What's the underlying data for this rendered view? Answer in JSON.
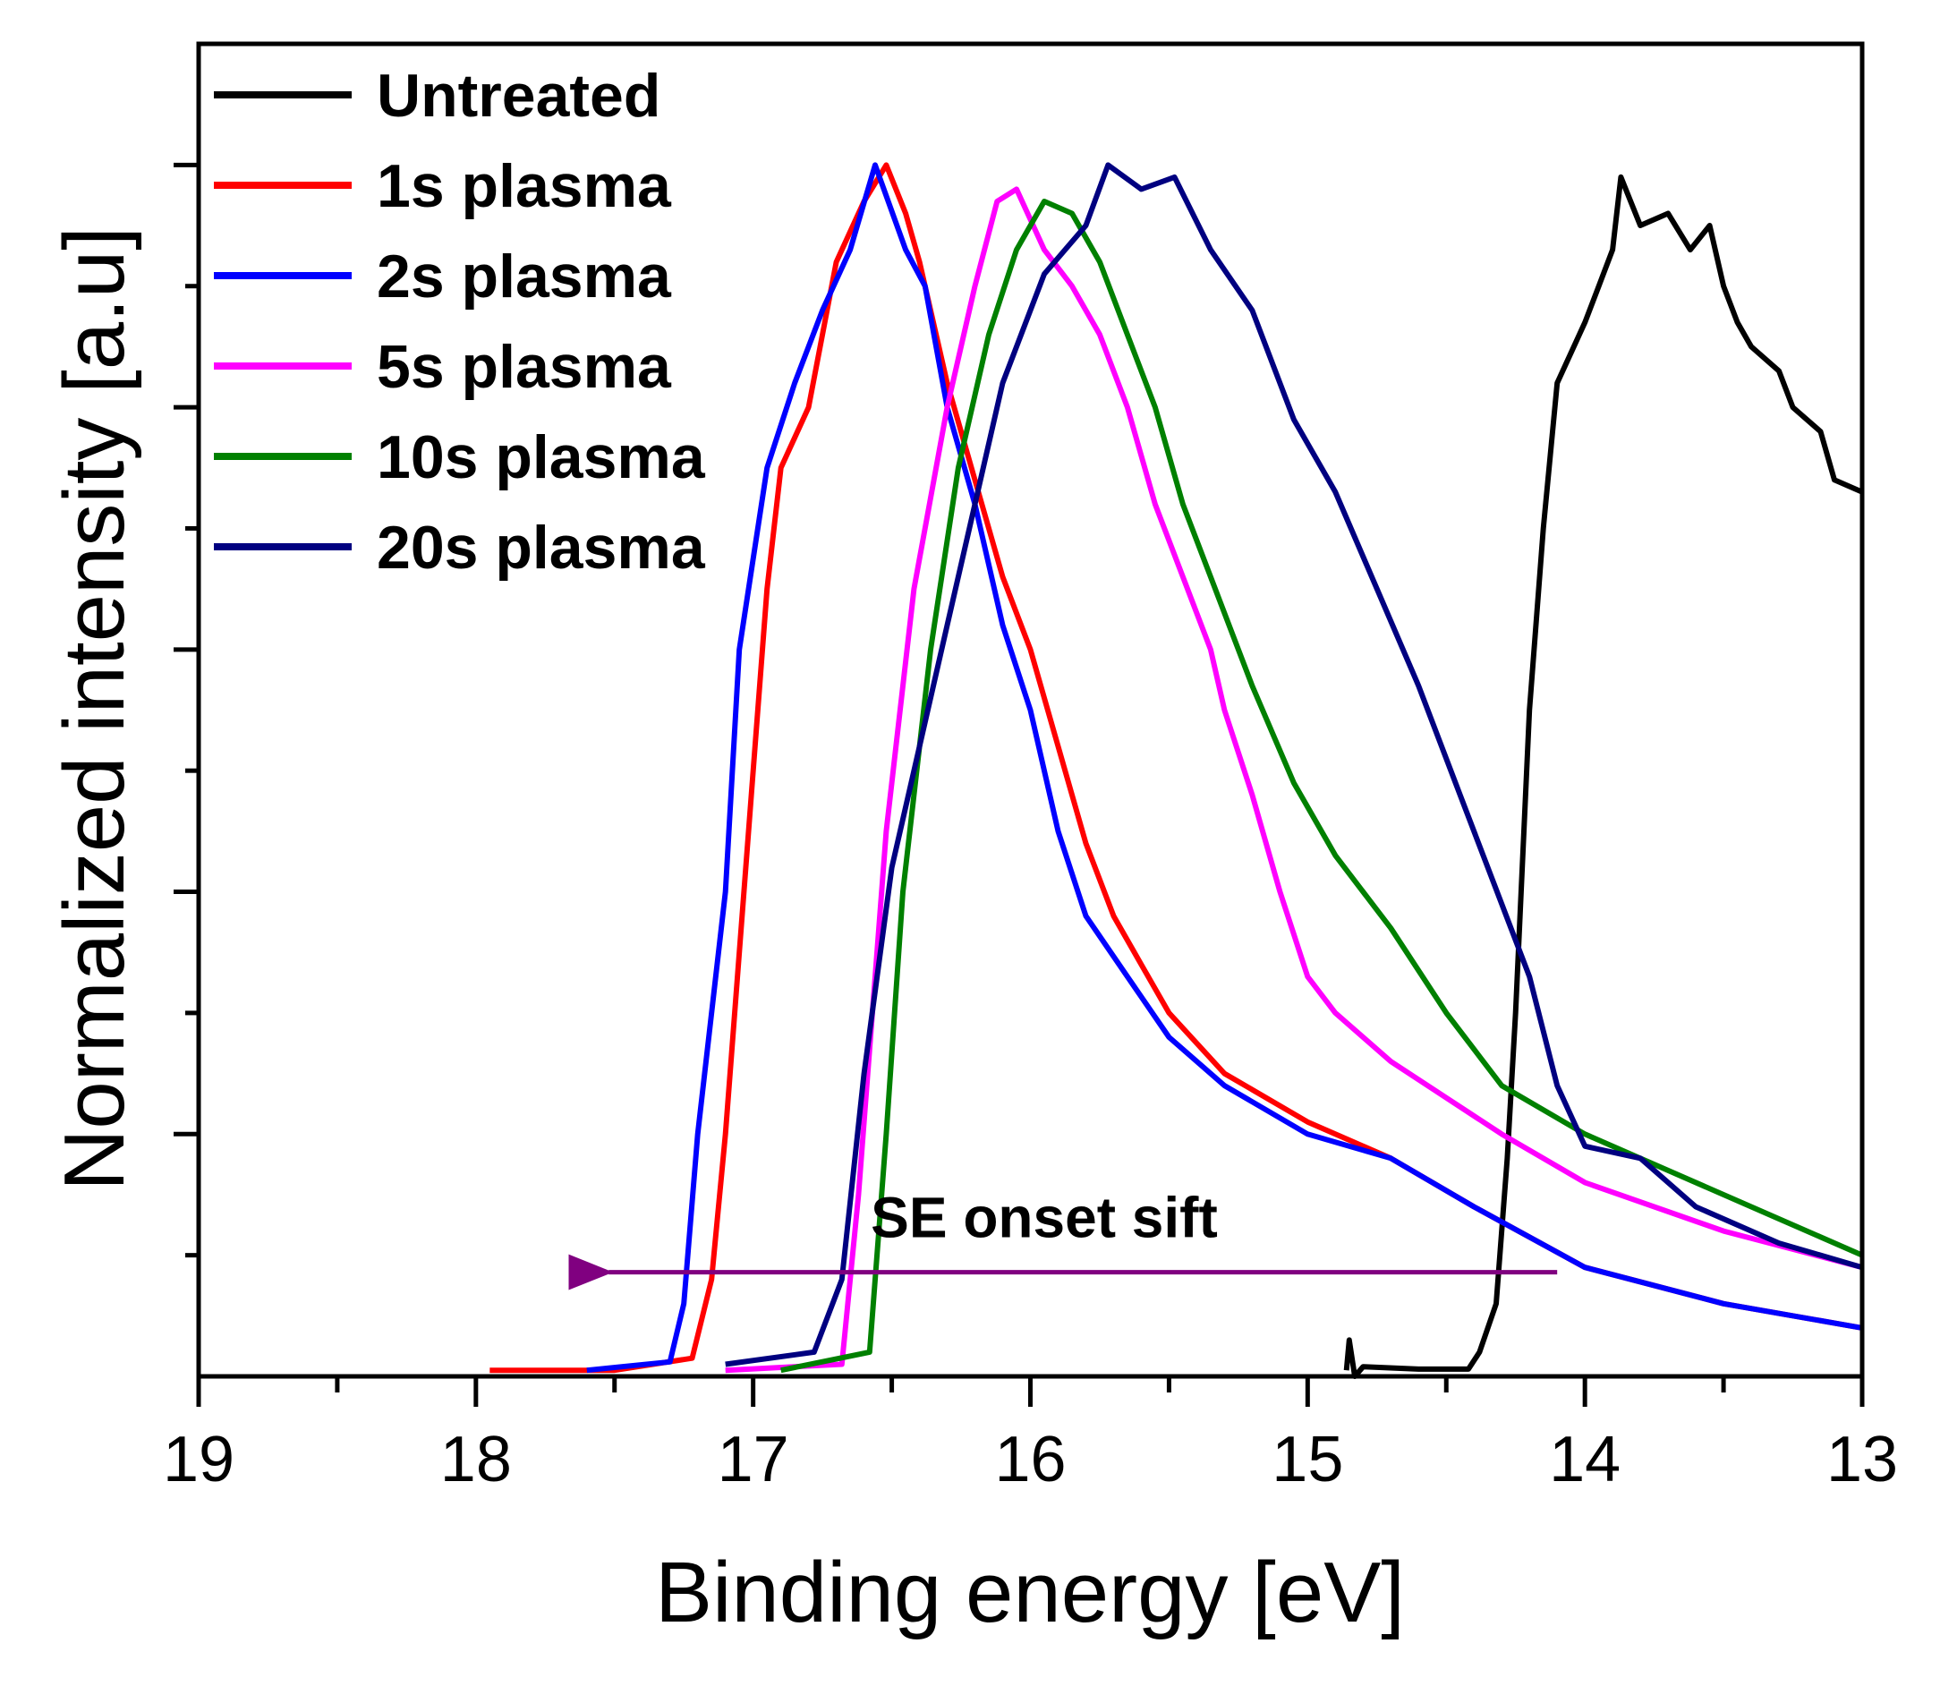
{
  "chart_data": {
    "type": "line",
    "title": "",
    "xlabel": "Binding energy [eV]",
    "ylabel": "Normalized intensity [a.u]",
    "xlim": [
      19,
      13
    ],
    "ylim": [
      0,
      1.1
    ],
    "x_reversed": true,
    "xticks": [
      "19",
      "18",
      "17",
      "16",
      "15",
      "14",
      "13"
    ],
    "yticks_labeled": false,
    "grid": false,
    "legend_position": "top-left",
    "annotation": {
      "text": "SE onset sift",
      "arrow_from": [
        14.1,
        0.086
      ],
      "arrow_to": [
        17.65,
        0.086
      ],
      "color": "#800080"
    },
    "series": [
      {
        "name": "Untreated",
        "color": "#000000",
        "points": [
          [
            14.86,
            0.005
          ],
          [
            14.85,
            0.03
          ],
          [
            14.83,
            0.0
          ],
          [
            14.8,
            0.008
          ],
          [
            14.6,
            0.006
          ],
          [
            14.42,
            0.006
          ],
          [
            14.38,
            0.02
          ],
          [
            14.32,
            0.06
          ],
          [
            14.28,
            0.18
          ],
          [
            14.25,
            0.3
          ],
          [
            14.2,
            0.55
          ],
          [
            14.15,
            0.7
          ],
          [
            14.1,
            0.82
          ],
          [
            14.0,
            0.87
          ],
          [
            13.95,
            0.9
          ],
          [
            13.9,
            0.93
          ],
          [
            13.87,
            0.99
          ],
          [
            13.8,
            0.95
          ],
          [
            13.7,
            0.96
          ],
          [
            13.62,
            0.93
          ],
          [
            13.55,
            0.95
          ],
          [
            13.5,
            0.9
          ],
          [
            13.45,
            0.87
          ],
          [
            13.4,
            0.85
          ],
          [
            13.3,
            0.83
          ],
          [
            13.25,
            0.8
          ],
          [
            13.15,
            0.78
          ],
          [
            13.1,
            0.74
          ],
          [
            13.0,
            0.73
          ]
        ]
      },
      {
        "name": "1s plasma",
        "color": "#ff0000",
        "points": [
          [
            17.95,
            0.005
          ],
          [
            17.5,
            0.005
          ],
          [
            17.22,
            0.015
          ],
          [
            17.15,
            0.08
          ],
          [
            17.1,
            0.2
          ],
          [
            17.05,
            0.35
          ],
          [
            17.0,
            0.5
          ],
          [
            16.95,
            0.65
          ],
          [
            16.9,
            0.75
          ],
          [
            16.8,
            0.8
          ],
          [
            16.7,
            0.92
          ],
          [
            16.6,
            0.97
          ],
          [
            16.52,
            1.0
          ],
          [
            16.45,
            0.96
          ],
          [
            16.4,
            0.92
          ],
          [
            16.3,
            0.82
          ],
          [
            16.2,
            0.74
          ],
          [
            16.1,
            0.66
          ],
          [
            16.0,
            0.6
          ],
          [
            15.9,
            0.52
          ],
          [
            15.8,
            0.44
          ],
          [
            15.7,
            0.38
          ],
          [
            15.6,
            0.34
          ],
          [
            15.5,
            0.3
          ],
          [
            15.3,
            0.25
          ],
          [
            15.0,
            0.21
          ],
          [
            14.7,
            0.18
          ],
          [
            14.4,
            0.14
          ],
          [
            14.0,
            0.09
          ],
          [
            13.5,
            0.06
          ],
          [
            13.0,
            0.04
          ]
        ]
      },
      {
        "name": "2s plasma",
        "color": "#0000ff",
        "points": [
          [
            17.6,
            0.005
          ],
          [
            17.3,
            0.012
          ],
          [
            17.25,
            0.06
          ],
          [
            17.2,
            0.2
          ],
          [
            17.1,
            0.4
          ],
          [
            17.05,
            0.6
          ],
          [
            16.95,
            0.75
          ],
          [
            16.85,
            0.82
          ],
          [
            16.75,
            0.88
          ],
          [
            16.65,
            0.93
          ],
          [
            16.56,
            1.0
          ],
          [
            16.45,
            0.93
          ],
          [
            16.38,
            0.9
          ],
          [
            16.3,
            0.8
          ],
          [
            16.2,
            0.72
          ],
          [
            16.1,
            0.62
          ],
          [
            16.0,
            0.55
          ],
          [
            15.9,
            0.45
          ],
          [
            15.8,
            0.38
          ],
          [
            15.65,
            0.33
          ],
          [
            15.5,
            0.28
          ],
          [
            15.3,
            0.24
          ],
          [
            15.0,
            0.2
          ],
          [
            14.7,
            0.18
          ],
          [
            14.4,
            0.14
          ],
          [
            14.0,
            0.09
          ],
          [
            13.5,
            0.06
          ],
          [
            13.0,
            0.04
          ]
        ]
      },
      {
        "name": "5s plasma",
        "color": "#ff00ff",
        "points": [
          [
            17.1,
            0.005
          ],
          [
            16.68,
            0.01
          ],
          [
            16.62,
            0.15
          ],
          [
            16.52,
            0.45
          ],
          [
            16.42,
            0.65
          ],
          [
            16.3,
            0.8
          ],
          [
            16.2,
            0.9
          ],
          [
            16.12,
            0.97
          ],
          [
            16.05,
            0.98
          ],
          [
            15.95,
            0.93
          ],
          [
            15.85,
            0.9
          ],
          [
            15.75,
            0.86
          ],
          [
            15.65,
            0.8
          ],
          [
            15.55,
            0.72
          ],
          [
            15.45,
            0.66
          ],
          [
            15.35,
            0.6
          ],
          [
            15.3,
            0.55
          ],
          [
            15.2,
            0.48
          ],
          [
            15.1,
            0.4
          ],
          [
            15.0,
            0.33
          ],
          [
            14.9,
            0.3
          ],
          [
            14.7,
            0.26
          ],
          [
            14.5,
            0.23
          ],
          [
            14.3,
            0.2
          ],
          [
            14.0,
            0.16
          ],
          [
            13.5,
            0.12
          ],
          [
            13.0,
            0.09
          ]
        ]
      },
      {
        "name": "10s plasma",
        "color": "#008000",
        "points": [
          [
            16.9,
            0.005
          ],
          [
            16.58,
            0.02
          ],
          [
            16.52,
            0.2
          ],
          [
            16.46,
            0.4
          ],
          [
            16.36,
            0.6
          ],
          [
            16.26,
            0.75
          ],
          [
            16.15,
            0.86
          ],
          [
            16.05,
            0.93
          ],
          [
            15.95,
            0.97
          ],
          [
            15.85,
            0.96
          ],
          [
            15.75,
            0.92
          ],
          [
            15.65,
            0.86
          ],
          [
            15.55,
            0.8
          ],
          [
            15.45,
            0.72
          ],
          [
            15.35,
            0.66
          ],
          [
            15.2,
            0.57
          ],
          [
            15.05,
            0.49
          ],
          [
            14.9,
            0.43
          ],
          [
            14.7,
            0.37
          ],
          [
            14.5,
            0.3
          ],
          [
            14.3,
            0.24
          ],
          [
            14.0,
            0.2
          ],
          [
            13.7,
            0.17
          ],
          [
            13.3,
            0.13
          ],
          [
            13.0,
            0.1
          ]
        ]
      },
      {
        "name": "20s plasma",
        "color": "#000080",
        "points": [
          [
            17.1,
            0.01
          ],
          [
            16.78,
            0.02
          ],
          [
            16.68,
            0.08
          ],
          [
            16.6,
            0.25
          ],
          [
            16.5,
            0.42
          ],
          [
            16.4,
            0.52
          ],
          [
            16.3,
            0.62
          ],
          [
            16.2,
            0.72
          ],
          [
            16.1,
            0.82
          ],
          [
            15.95,
            0.91
          ],
          [
            15.8,
            0.95
          ],
          [
            15.72,
            1.0
          ],
          [
            15.6,
            0.98
          ],
          [
            15.48,
            0.99
          ],
          [
            15.35,
            0.93
          ],
          [
            15.2,
            0.88
          ],
          [
            15.05,
            0.79
          ],
          [
            14.9,
            0.73
          ],
          [
            14.75,
            0.65
          ],
          [
            14.6,
            0.57
          ],
          [
            14.45,
            0.48
          ],
          [
            14.3,
            0.39
          ],
          [
            14.2,
            0.33
          ],
          [
            14.1,
            0.24
          ],
          [
            14.0,
            0.19
          ],
          [
            13.8,
            0.18
          ],
          [
            13.6,
            0.14
          ],
          [
            13.3,
            0.11
          ],
          [
            13.0,
            0.09
          ]
        ]
      }
    ]
  }
}
